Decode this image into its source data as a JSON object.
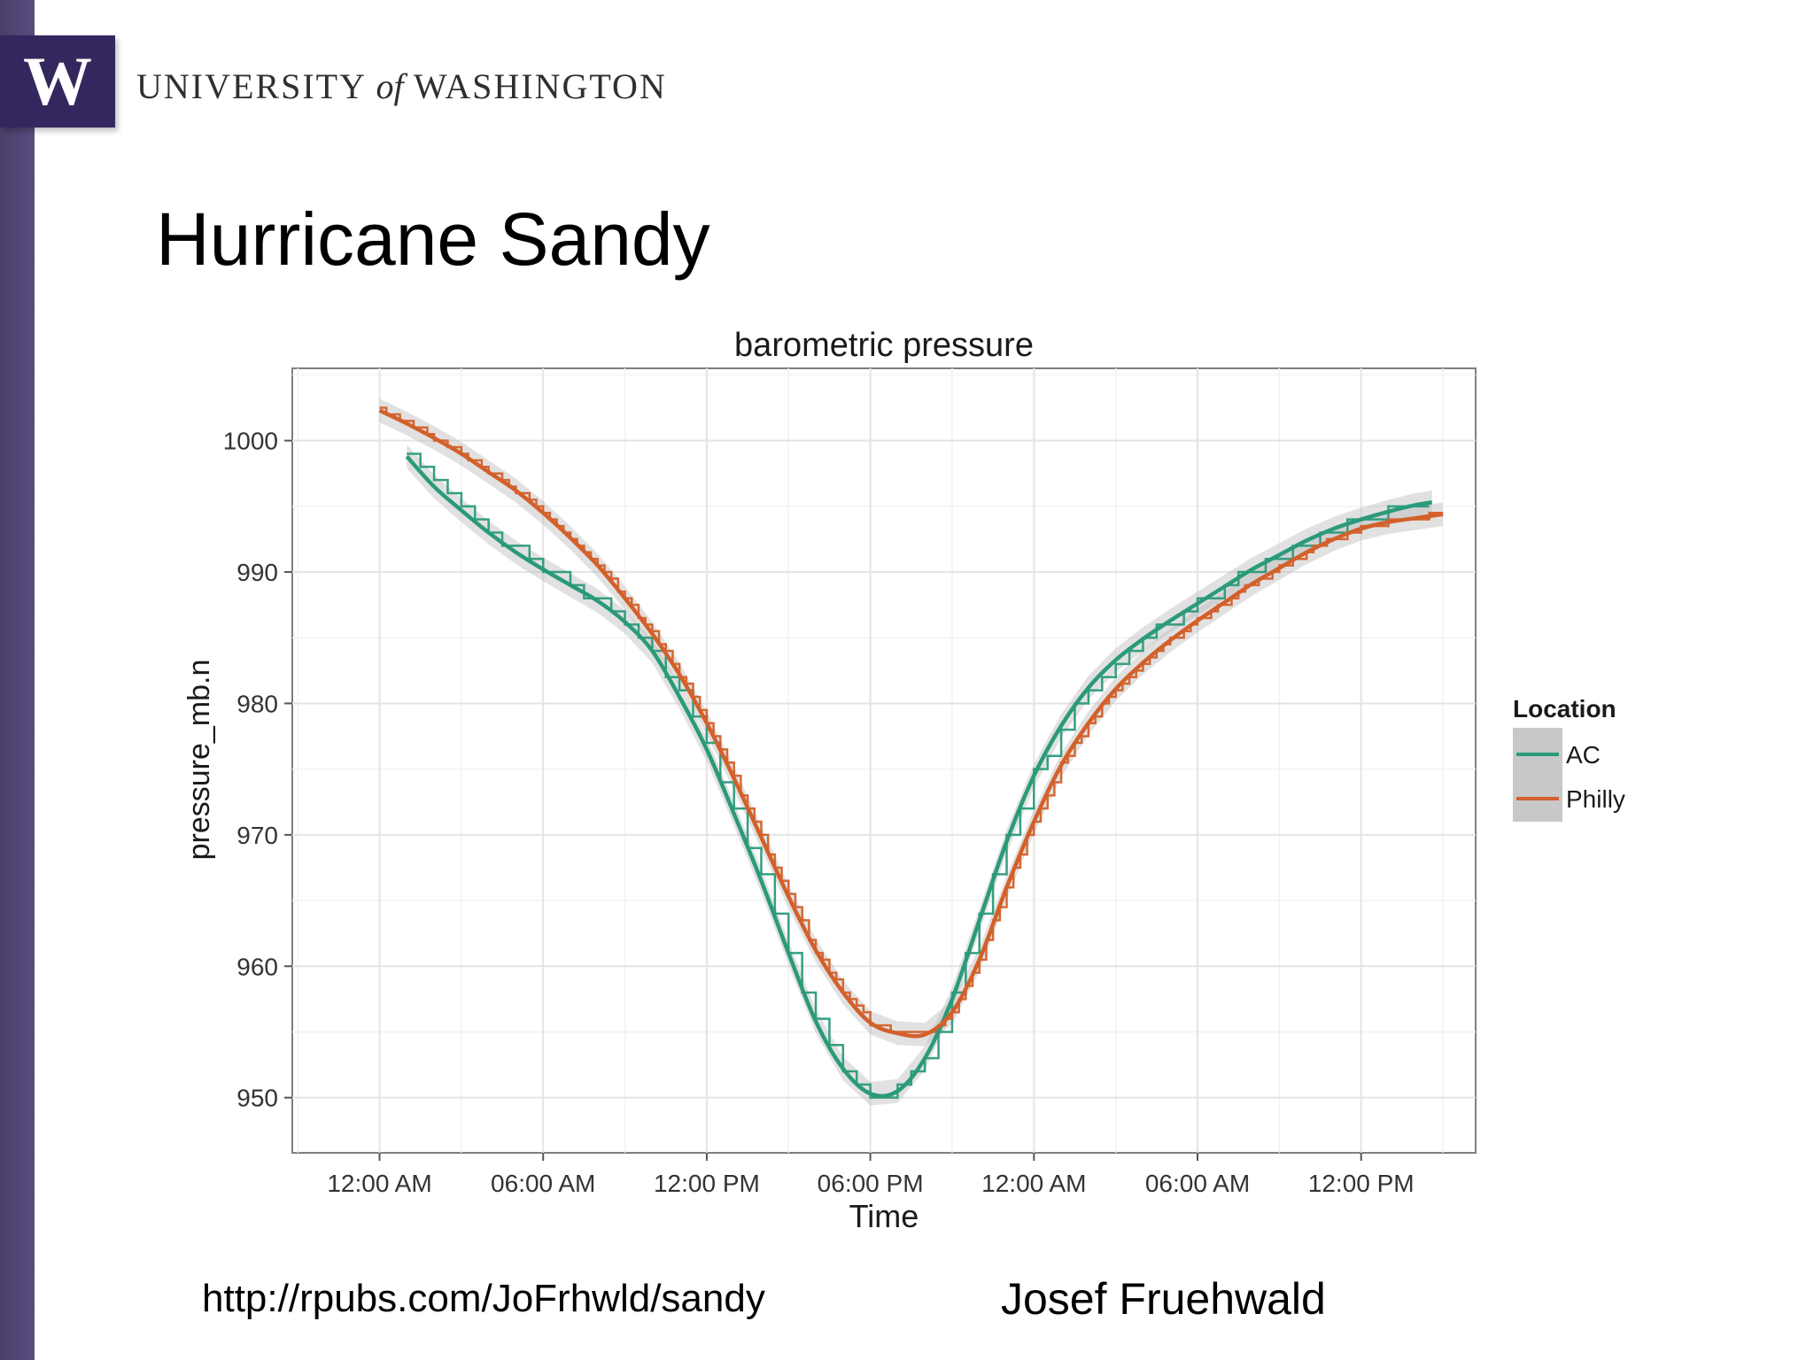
{
  "brand": {
    "logo_letter": "W",
    "name_part1": "UNIVERSITY",
    "name_of": "of",
    "name_part2": "WASHINGTON",
    "accent_color": "#4b2e83"
  },
  "slide": {
    "title": "Hurricane Sandy",
    "source_url": "http://rpubs.com/JoFrhwld/sandy",
    "author": "Josef Fruehwald"
  },
  "chart_data": {
    "type": "line",
    "title": "barometric pressure",
    "xlabel": "Time",
    "ylabel": "pressure_mb.n",
    "x_unit": "hours from 12:00 AM",
    "xlim": [
      -3.2,
      40.2
    ],
    "ylim": [
      945.8,
      1005.5
    ],
    "x_ticks": [
      {
        "value": 0,
        "label": "12:00 AM"
      },
      {
        "value": 6,
        "label": "06:00 AM"
      },
      {
        "value": 12,
        "label": "12:00 PM"
      },
      {
        "value": 18,
        "label": "06:00 PM"
      },
      {
        "value": 24,
        "label": "12:00 AM"
      },
      {
        "value": 30,
        "label": "06:00 AM"
      },
      {
        "value": 36,
        "label": "12:00 PM"
      }
    ],
    "y_ticks": [
      {
        "value": 950,
        "label": "950"
      },
      {
        "value": 960,
        "label": "960"
      },
      {
        "value": 970,
        "label": "970"
      },
      {
        "value": 980,
        "label": "980"
      },
      {
        "value": 990,
        "label": "990"
      },
      {
        "value": 1000,
        "label": "1000"
      }
    ],
    "grid": true,
    "legend": {
      "title": "Location",
      "position": "right"
    },
    "series": [
      {
        "name": "AC",
        "color": "#2a9a7a",
        "x": [
          1.0,
          2.0,
          3.0,
          4.0,
          5.0,
          6.0,
          7.0,
          8.0,
          9.0,
          10.0,
          11.0,
          12.0,
          13.0,
          14.0,
          15.0,
          16.0,
          17.0,
          18.0,
          19.0,
          20.0,
          21.0,
          22.0,
          23.0,
          24.0,
          25.0,
          26.0,
          27.0,
          28.0,
          29.0,
          30.0,
          31.0,
          32.0,
          33.0,
          34.0,
          35.0,
          36.0,
          37.0,
          38.0,
          38.6
        ],
        "values": [
          998.8,
          996.5,
          994.7,
          993.0,
          991.5,
          990.2,
          989.0,
          987.8,
          986.2,
          984.0,
          980.5,
          976.5,
          971.6,
          966.5,
          961.0,
          955.8,
          952.2,
          950.3,
          950.5,
          953.0,
          957.5,
          963.5,
          969.5,
          974.5,
          978.3,
          981.2,
          983.3,
          984.9,
          986.3,
          987.6,
          988.9,
          990.2,
          991.3,
          992.4,
          993.3,
          994.0,
          994.6,
          995.1,
          995.3
        ]
      },
      {
        "name": "Philly",
        "color": "#d3602a",
        "x": [
          0.0,
          1.0,
          2.0,
          3.0,
          4.0,
          5.0,
          6.0,
          7.0,
          8.0,
          9.0,
          10.0,
          11.0,
          12.0,
          13.0,
          14.0,
          15.0,
          16.0,
          17.0,
          18.0,
          19.0,
          20.0,
          21.0,
          22.0,
          23.0,
          24.0,
          25.0,
          26.0,
          27.0,
          28.0,
          29.0,
          30.0,
          31.0,
          32.0,
          33.0,
          34.0,
          35.0,
          36.0,
          37.0,
          38.0,
          39.0
        ],
        "values": [
          1002.3,
          1001.3,
          1000.2,
          999.0,
          997.6,
          996.2,
          994.5,
          992.6,
          990.5,
          988.0,
          985.3,
          982.2,
          978.5,
          974.3,
          969.8,
          965.3,
          961.2,
          958.0,
          955.7,
          954.9,
          954.8,
          956.5,
          960.5,
          966.0,
          971.0,
          975.3,
          978.5,
          981.1,
          983.1,
          984.8,
          986.3,
          987.7,
          989.1,
          990.3,
          991.5,
          992.5,
          993.3,
          993.8,
          994.1,
          994.4
        ]
      }
    ],
    "confidence_band": {
      "color": "#bdbdbd",
      "half_width_mb": 0.9
    }
  }
}
